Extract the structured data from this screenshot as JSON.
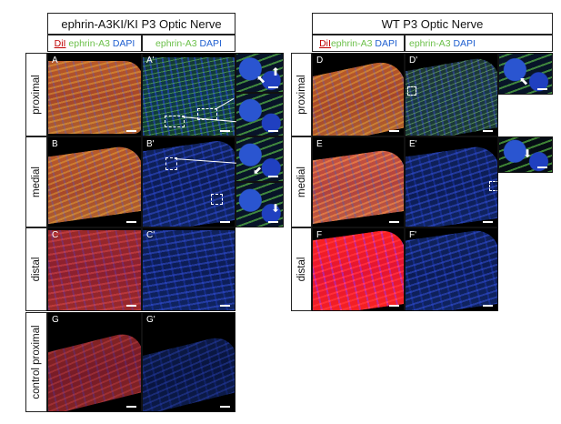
{
  "left_group": {
    "title": "ephrin-A3KI/KI P3 Optic Nerve",
    "col_headers": {
      "merge": {
        "dil": "DiI",
        "ephrin": "ephrin-A3",
        "dapi": "DAPI"
      },
      "single": {
        "ephrin": "ephrin-A3",
        "dapi": "DAPI"
      }
    },
    "rows": [
      "proximal",
      "medial",
      "distal",
      "control proximal"
    ],
    "panels": [
      "A",
      "A'",
      "B",
      "B'",
      "C",
      "C'",
      "G",
      "G'"
    ]
  },
  "right_group": {
    "title": "WT P3 Optic Nerve",
    "col_headers": {
      "merge": {
        "dil": "DiI",
        "ephrin": "ephrin-A3",
        "dapi": "DAPI"
      },
      "single": {
        "ephrin": "ephrin-A3",
        "dapi": "DAPI"
      }
    },
    "rows": [
      "proximal",
      "medial",
      "distal"
    ],
    "panels": [
      "D",
      "D'",
      "E",
      "E'",
      "F",
      "F'"
    ]
  },
  "colors": {
    "dil": "#c00000",
    "ephrin": "#6cc04a",
    "dapi": "#1f5fd0"
  }
}
